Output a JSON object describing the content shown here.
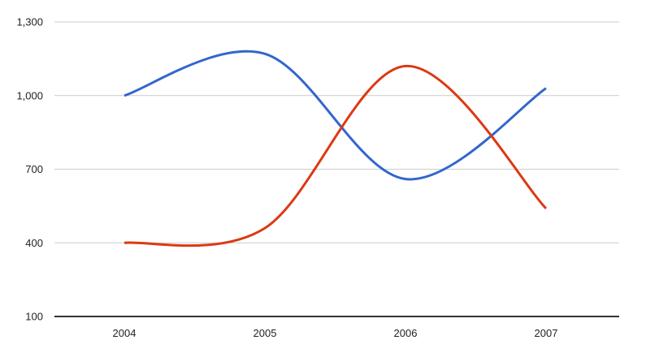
{
  "chart_data": {
    "type": "line",
    "curve": "smooth",
    "title": "",
    "xlabel": "",
    "ylabel": "",
    "x": [
      2004,
      2005,
      2006,
      2007
    ],
    "x_tick_labels": [
      "2004",
      "2005",
      "2006",
      "2007"
    ],
    "series": [
      {
        "color": "#3366CC",
        "color_name": "blue",
        "values": [
          1000,
          1170,
          660,
          1030
        ]
      },
      {
        "color": "#DC3912",
        "color_name": "red-orange",
        "values": [
          400,
          460,
          1120,
          540
        ]
      }
    ],
    "y_ticks": [
      100,
      400,
      700,
      1000,
      1300
    ],
    "y_tick_labels": [
      "100",
      "400",
      "700",
      "1,000",
      "1,300"
    ],
    "ylim": [
      100,
      1300
    ],
    "grid": true,
    "legend": "none",
    "styles": {
      "background": "#ffffff",
      "gridline_color": "#cccccc",
      "baseline_color": "#333333",
      "axis_label_color": "#222222",
      "line_width": 3
    }
  }
}
